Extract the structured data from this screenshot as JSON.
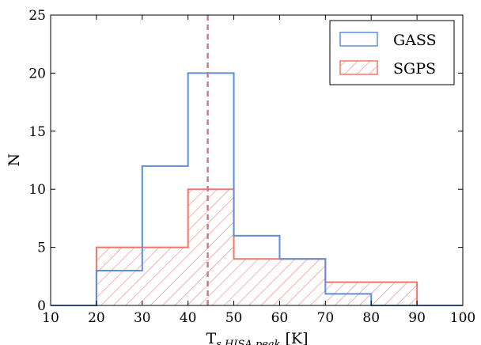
{
  "chart_data": {
    "type": "histogram",
    "xlabel": {
      "main": "T",
      "sub": "s,HISA,peak",
      "unit": "[K]"
    },
    "ylabel": "N",
    "xlim": [
      10,
      100
    ],
    "ylim": [
      0,
      25
    ],
    "xticks": [
      "10",
      "20",
      "30",
      "40",
      "50",
      "60",
      "70",
      "80",
      "90",
      "100"
    ],
    "yticks": [
      "0",
      "5",
      "10",
      "15",
      "20",
      "25"
    ],
    "bin_edges": [
      10,
      20,
      30,
      40,
      50,
      60,
      70,
      80,
      90,
      100
    ],
    "series": [
      {
        "name": "GASS",
        "style": "step",
        "color": "#5b8fd9",
        "counts": [
          0,
          3,
          12,
          20,
          6,
          4,
          1,
          0,
          0
        ]
      },
      {
        "name": "SGPS",
        "style": "hatched",
        "color": "#f0766b",
        "counts": [
          0,
          5,
          5,
          10,
          4,
          4,
          2,
          2,
          0
        ]
      }
    ],
    "vline": {
      "x": 44.3,
      "color": "#e0727e",
      "style": "dashed"
    },
    "legend_position": "top-right",
    "grid": false
  }
}
